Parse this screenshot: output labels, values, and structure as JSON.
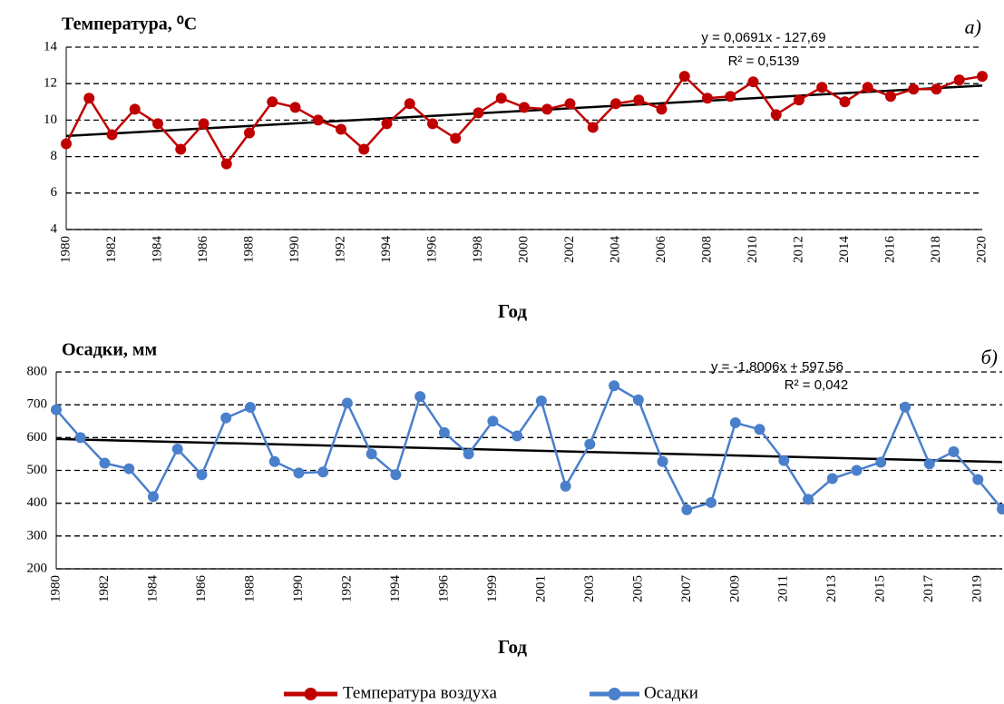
{
  "chart_data": [
    {
      "type": "line",
      "title": "Температура, ⁰C",
      "panel_label": "а)",
      "x_label": "Год",
      "x": [
        1980,
        1981,
        1982,
        1983,
        1984,
        1985,
        1986,
        1987,
        1988,
        1989,
        1990,
        1991,
        1992,
        1993,
        1994,
        1995,
        1996,
        1997,
        1998,
        1999,
        2000,
        2001,
        2002,
        2003,
        2004,
        2005,
        2006,
        2007,
        2008,
        2009,
        2010,
        2011,
        2012,
        2013,
        2014,
        2015,
        2016,
        2017,
        2018,
        2019,
        2020
      ],
      "xlim": [
        1980,
        2020
      ],
      "xticks": [
        1980,
        1982,
        1984,
        1986,
        1988,
        1990,
        1992,
        1994,
        1996,
        1998,
        2000,
        2002,
        2004,
        2006,
        2008,
        2010,
        2012,
        2014,
        2016,
        2018,
        2020
      ],
      "ylim": [
        4,
        14
      ],
      "yticks": [
        4,
        6,
        8,
        10,
        12,
        14
      ],
      "grid": true,
      "series": [
        {
          "name": "Температура воздуха",
          "color": "#c00000",
          "values": [
            8.7,
            11.2,
            9.2,
            10.6,
            9.8,
            8.4,
            9.8,
            7.6,
            9.3,
            11.0,
            10.7,
            10.0,
            9.5,
            8.4,
            9.8,
            10.9,
            9.8,
            9.0,
            10.4,
            11.2,
            10.7,
            10.6,
            10.9,
            9.6,
            10.9,
            11.1,
            10.6,
            12.4,
            11.2,
            11.3,
            12.1,
            10.3,
            11.1,
            11.8,
            11.0,
            11.8,
            11.3,
            11.7,
            11.7,
            12.2,
            12.4
          ]
        }
      ],
      "trendline": {
        "equation": "y = 0,0691x - 127,69",
        "r_squared": "R² = 0,5139",
        "slope": 0.0691,
        "intercept": -127.69,
        "color": "#000000"
      }
    },
    {
      "type": "line",
      "title": "Осадки, мм",
      "panel_label": "б)",
      "x_label": "Год",
      "categories": [
        "1980",
        null,
        "1982",
        null,
        "1984",
        null,
        "1986",
        null,
        "1988",
        null,
        "1990",
        null,
        "1992",
        null,
        "1994",
        null,
        "1996",
        null,
        "1999",
        null,
        "2001",
        null,
        "2003",
        null,
        "2005",
        null,
        "2007",
        null,
        "2009",
        null,
        "2011",
        null,
        "2013",
        null,
        "2015",
        null,
        "2017",
        null,
        "2019",
        null
      ],
      "ylim": [
        200,
        800
      ],
      "yticks": [
        200,
        300,
        400,
        500,
        600,
        700,
        800
      ],
      "grid": true,
      "series": [
        {
          "name": "Осадки",
          "color": "#4a7fcb",
          "values": [
            685,
            600,
            522,
            505,
            420,
            565,
            487,
            660,
            692,
            527,
            492,
            495,
            705,
            550,
            487,
            725,
            615,
            550,
            650,
            605,
            712,
            452,
            580,
            758,
            715,
            527,
            380,
            402,
            645,
            625,
            530,
            412,
            475,
            500,
            525,
            693,
            520,
            557,
            472,
            382
          ]
        }
      ],
      "trendline": {
        "equation": "y = -1,8006x + 597,56",
        "r_squared": "R² = 0,042",
        "slope": -1.8006,
        "intercept": 597.56,
        "color": "#000000"
      }
    }
  ]
}
